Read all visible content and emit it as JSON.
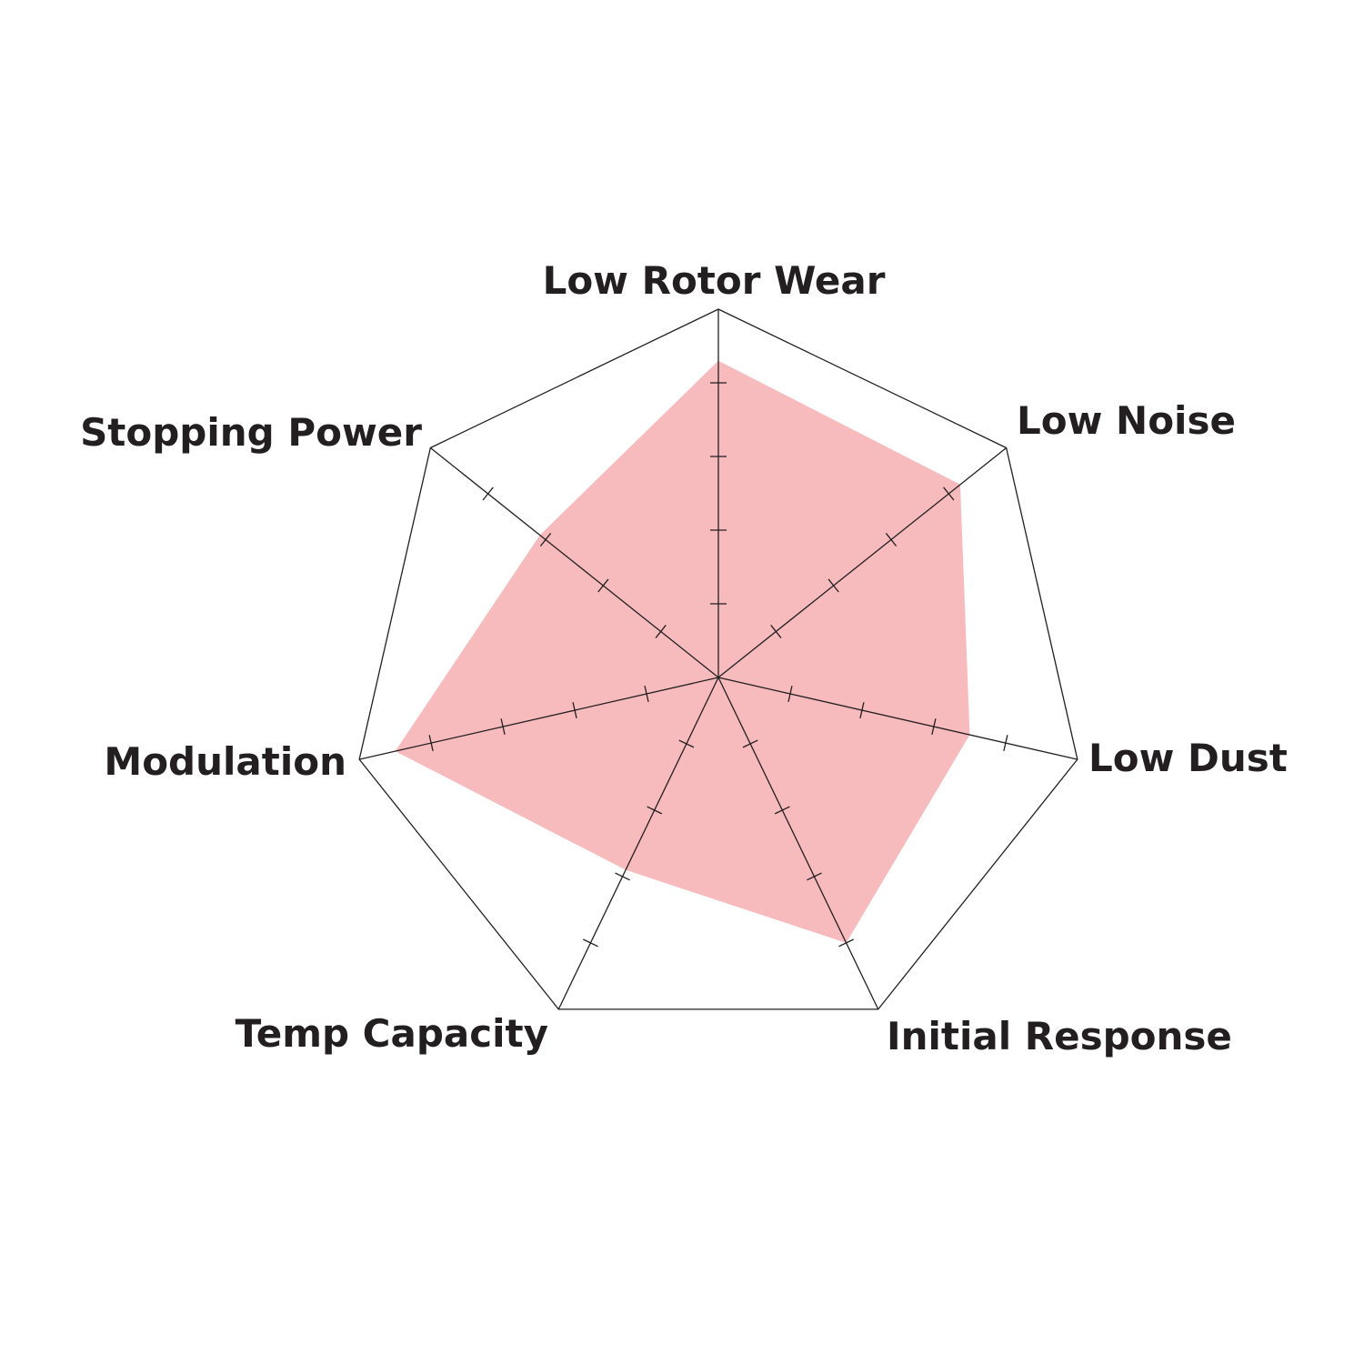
{
  "chart_data": {
    "type": "radar",
    "categories": [
      "Low Rotor Wear",
      "Low Noise",
      "Low Dust",
      "Initial Response",
      "Temp Capacity",
      "Modulation",
      "Stopping Power"
    ],
    "values": [
      4.3,
      4.2,
      3.5,
      4.0,
      2.9,
      4.5,
      3.1
    ],
    "range": [
      0,
      5
    ],
    "ticks": [
      1,
      2,
      3,
      4
    ],
    "fill_color": "#f7babd",
    "grid_color": "#231f20",
    "grid": "outer polygon only"
  }
}
